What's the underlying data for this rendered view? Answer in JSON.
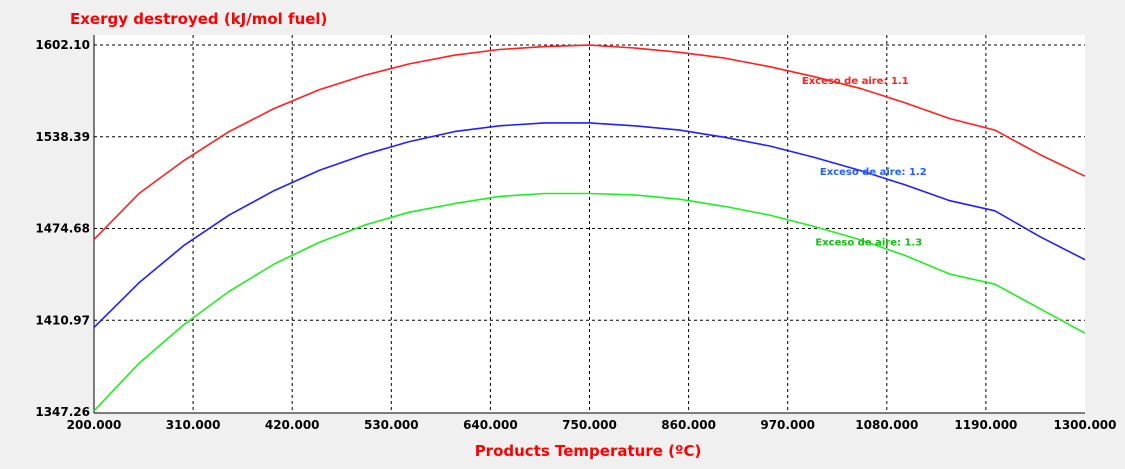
{
  "chart_data": {
    "type": "line",
    "title": "Exergy destroyed (kJ/mol fuel)",
    "xlabel": "Products Temperature (ºC)",
    "ylabel": "",
    "xlim": [
      200,
      1300
    ],
    "ylim": [
      1347.26,
      1602.1
    ],
    "x_ticks": [
      200,
      310,
      420,
      530,
      640,
      750,
      860,
      970,
      1080,
      1190,
      1300
    ],
    "x_tick_labels": [
      "200.000",
      "310.000",
      "420.000",
      "530.000",
      "640.000",
      "750.000",
      "860.000",
      "970.000",
      "1080.000",
      "1190.000",
      "1300.000"
    ],
    "y_ticks": [
      1347.26,
      1410.97,
      1474.68,
      1538.39,
      1602.1
    ],
    "y_tick_labels": [
      "1347.26",
      "1410.97",
      "1474.68",
      "1538.39",
      "1602.10"
    ],
    "grid": true,
    "series": [
      {
        "name": "Exceso de aire: 1.1",
        "color": "#ff2020",
        "x": [
          200,
          250,
          300,
          350,
          400,
          450,
          500,
          550,
          600,
          650,
          700,
          750,
          800,
          850,
          900,
          950,
          1000,
          1050,
          1100,
          1150,
          1200,
          1250,
          1300
        ],
        "y": [
          1467,
          1499,
          1522,
          1542,
          1558,
          1571,
          1581,
          1589,
          1595,
          1599,
          1601,
          1602,
          1600,
          1597,
          1593,
          1587,
          1580,
          1572,
          1562,
          1551,
          1543,
          1526,
          1511
        ]
      },
      {
        "name": "Exceso de aire: 1.2",
        "color": "#2020ff",
        "x": [
          200,
          250,
          300,
          350,
          400,
          450,
          500,
          550,
          600,
          650,
          700,
          750,
          800,
          850,
          900,
          950,
          1000,
          1050,
          1100,
          1150,
          1200,
          1250,
          1300
        ],
        "y": [
          1406,
          1437,
          1463,
          1484,
          1501,
          1515,
          1526,
          1535,
          1542,
          1546,
          1548,
          1548,
          1546,
          1543,
          1538,
          1532,
          1524,
          1515,
          1505,
          1494,
          1487,
          1469,
          1453
        ]
      },
      {
        "name": "Exceso de aire: 1.3",
        "color": "#20ee20",
        "x": [
          200,
          250,
          300,
          350,
          400,
          450,
          500,
          550,
          600,
          650,
          700,
          750,
          800,
          850,
          900,
          950,
          1000,
          1050,
          1100,
          1150,
          1200,
          1250,
          1300
        ],
        "y": [
          1348,
          1381,
          1408,
          1431,
          1450,
          1465,
          1477,
          1486,
          1492,
          1497,
          1499,
          1499,
          1498,
          1495,
          1490,
          1484,
          1476,
          1467,
          1456,
          1443,
          1436,
          1419,
          1402
        ]
      }
    ],
    "annotations": [
      {
        "text": "Exceso de aire: 1.1",
        "x": 1045,
        "y": 1575,
        "color": "#ff2020"
      },
      {
        "text": "Exceso de aire: 1.2",
        "x": 1065,
        "y": 1512,
        "color": "#2060ff"
      },
      {
        "text": "Exceso de aire: 1.3",
        "x": 1060,
        "y": 1463,
        "color": "#10c010"
      }
    ]
  }
}
